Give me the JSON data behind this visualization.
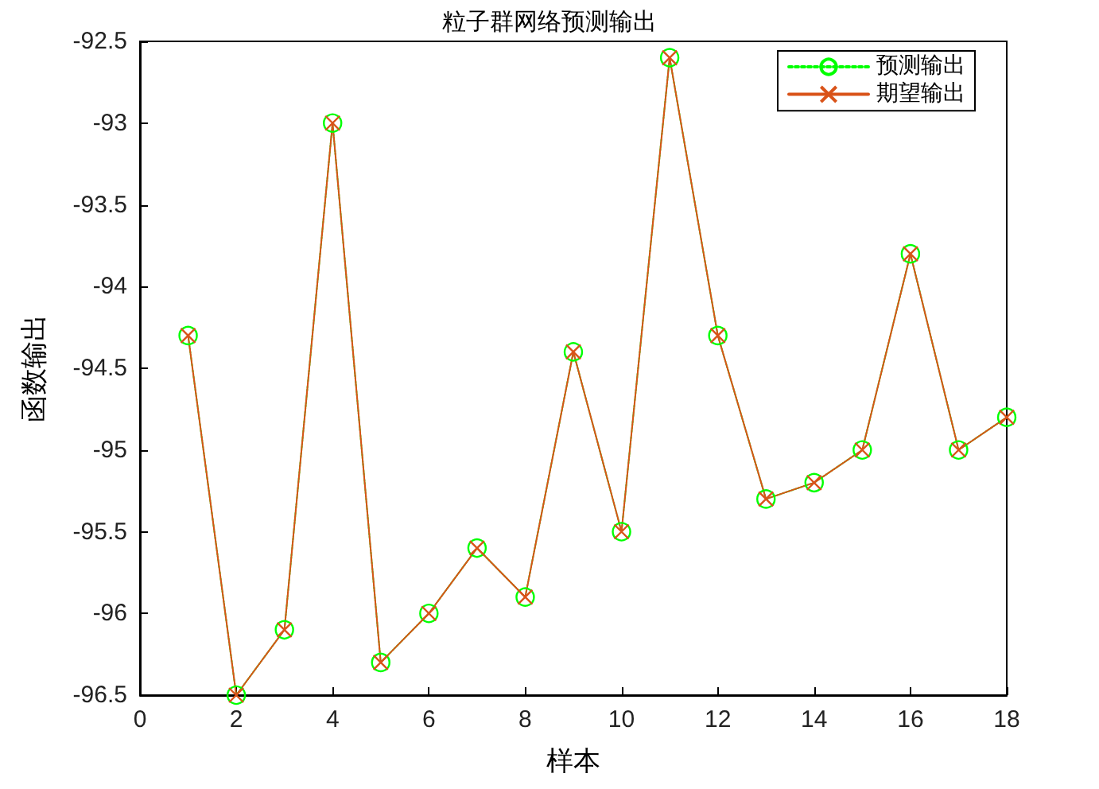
{
  "chart_data": {
    "type": "line",
    "title": "粒子群网络预测输出",
    "xlabel": "样本",
    "ylabel": "函数输出",
    "x": [
      1,
      2,
      3,
      4,
      5,
      6,
      7,
      8,
      9,
      10,
      11,
      12,
      13,
      14,
      15,
      16,
      17,
      18
    ],
    "series": [
      {
        "name": "预测输出",
        "color": "#00ff00",
        "marker": "circle",
        "line_style": "dotted",
        "values": [
          -94.3,
          -96.5,
          -96.1,
          -93.0,
          -96.3,
          -96.0,
          -95.6,
          -95.9,
          -94.4,
          -95.5,
          -92.6,
          -94.3,
          -95.3,
          -95.2,
          -95.0,
          -93.8,
          -95.0,
          -94.8
        ]
      },
      {
        "name": "期望输出",
        "color": "#d95319",
        "marker": "cross",
        "line_style": "solid",
        "values": [
          -94.3,
          -96.5,
          -96.1,
          -93.0,
          -96.3,
          -96.0,
          -95.6,
          -95.9,
          -94.4,
          -95.5,
          -92.6,
          -94.3,
          -95.3,
          -95.2,
          -95.0,
          -93.8,
          -95.0,
          -94.8
        ]
      }
    ],
    "xlim": [
      0,
      18
    ],
    "xticks": [
      0,
      2,
      4,
      6,
      8,
      10,
      12,
      14,
      16,
      18
    ],
    "ylim": [
      -96.5,
      -92.5
    ],
    "yticks": [
      -96.5,
      -96,
      -95.5,
      -95,
      -94.5,
      -94,
      -93.5,
      -93,
      -92.5
    ],
    "grid": false,
    "legend": "top right"
  }
}
